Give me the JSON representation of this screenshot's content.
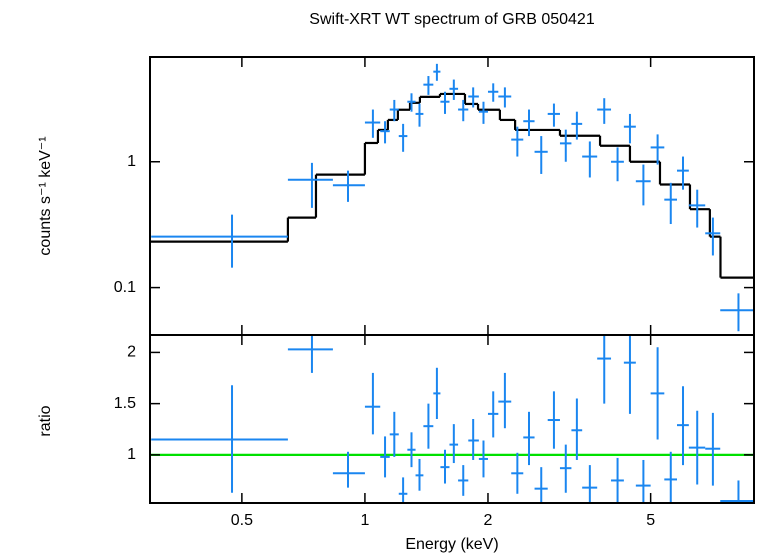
{
  "chart_data": [
    {
      "type": "errorbar",
      "title": "Swift-XRT WT spectrum of GRB 050421",
      "ylabel": "counts s⁻¹ keV⁻¹",
      "xscale": "log",
      "yscale": "log",
      "xlim": [
        0.298,
        8.95
      ],
      "ylim": [
        0.042,
        6.8
      ],
      "xticks": [
        0.5,
        1,
        2,
        5
      ],
      "yticks": [
        0.1,
        1
      ],
      "data": {
        "color": "#1a86f0",
        "x": [
          0.473,
          0.742,
          0.909,
          1.046,
          1.12,
          1.18,
          1.24,
          1.3,
          1.36,
          1.43,
          1.5,
          1.57,
          1.65,
          1.74,
          1.84,
          1.95,
          2.06,
          2.2,
          2.36,
          2.52,
          2.7,
          2.9,
          3.1,
          3.3,
          3.55,
          3.85,
          4.15,
          4.45,
          4.8,
          5.2,
          5.6,
          6.0,
          6.5,
          7.1,
          8.2
        ],
        "xlo": [
          0.3,
          0.648,
          0.835,
          1.0,
          1.09,
          1.15,
          1.21,
          1.27,
          1.33,
          1.39,
          1.47,
          1.53,
          1.61,
          1.69,
          1.79,
          1.9,
          2.0,
          2.12,
          2.28,
          2.44,
          2.6,
          2.8,
          3.0,
          3.2,
          3.4,
          3.7,
          4.0,
          4.3,
          4.6,
          5.0,
          5.4,
          5.8,
          6.2,
          6.8,
          7.4
        ],
        "xhi": [
          0.648,
          0.835,
          1.0,
          1.09,
          1.15,
          1.21,
          1.27,
          1.33,
          1.39,
          1.47,
          1.53,
          1.61,
          1.69,
          1.79,
          1.9,
          2.0,
          2.12,
          2.28,
          2.44,
          2.6,
          2.8,
          3.0,
          3.2,
          3.4,
          3.7,
          4.0,
          4.3,
          4.6,
          5.0,
          5.4,
          5.8,
          6.2,
          6.8,
          7.4,
          8.95
        ],
        "y": [
          0.254,
          0.72,
          0.65,
          2.05,
          1.75,
          2.6,
          1.6,
          3.0,
          2.4,
          4.1,
          5.2,
          3.0,
          3.8,
          2.6,
          3.3,
          2.5,
          3.6,
          3.3,
          1.5,
          2.1,
          1.2,
          2.4,
          1.4,
          2.0,
          1.1,
          2.6,
          1.0,
          1.9,
          0.7,
          1.3,
          0.5,
          0.85,
          0.45,
          0.27,
          0.066
        ],
        "ylo": [
          0.144,
          0.43,
          0.48,
          1.55,
          1.4,
          2.1,
          1.2,
          2.5,
          1.9,
          3.4,
          4.4,
          2.4,
          3.1,
          2.1,
          2.7,
          2.0,
          3.0,
          2.7,
          1.1,
          1.6,
          0.8,
          1.9,
          1.0,
          1.5,
          0.75,
          2.0,
          0.7,
          1.4,
          0.45,
          0.95,
          0.32,
          0.6,
          0.3,
          0.18,
          0.045
        ],
        "yhi": [
          0.38,
          0.98,
          0.85,
          2.6,
          2.1,
          3.1,
          2.0,
          3.5,
          2.9,
          4.8,
          6.0,
          3.6,
          4.5,
          3.1,
          3.9,
          3.0,
          4.2,
          3.9,
          1.9,
          2.6,
          1.6,
          2.9,
          1.8,
          2.5,
          1.45,
          3.2,
          1.3,
          2.4,
          0.95,
          1.65,
          0.68,
          1.1,
          0.6,
          0.36,
          0.09
        ]
      },
      "model": {
        "color": "#000000",
        "edges": [
          0.298,
          0.648,
          0.759,
          1.0,
          1.076,
          1.138,
          1.204,
          1.289,
          1.363,
          1.526,
          1.757,
          1.891,
          2.139,
          2.33,
          3.0,
          3.76,
          4.45,
          5.27,
          6.24,
          6.98,
          7.41,
          8.95
        ],
        "values": [
          0.232,
          0.36,
          0.79,
          1.41,
          1.79,
          2.15,
          2.59,
          2.94,
          3.28,
          3.46,
          2.88,
          2.59,
          2.15,
          1.79,
          1.61,
          1.34,
          1.0,
          0.66,
          0.42,
          0.254,
          0.12
        ]
      }
    },
    {
      "type": "errorbar",
      "ylabel": "ratio",
      "xlabel": "Energy (keV)",
      "xscale": "log",
      "yscale": "linear",
      "xlim": [
        0.298,
        8.95
      ],
      "ylim": [
        0.53,
        2.17
      ],
      "xticks": [
        0.5,
        1,
        2,
        5
      ],
      "yticks": [
        1,
        1.5,
        2
      ],
      "data": {
        "color": "#1a86f0",
        "x": [
          0.473,
          0.742,
          0.909,
          1.046,
          1.12,
          1.18,
          1.24,
          1.3,
          1.36,
          1.43,
          1.5,
          1.57,
          1.65,
          1.74,
          1.84,
          1.95,
          2.06,
          2.2,
          2.36,
          2.52,
          2.7,
          2.9,
          3.1,
          3.3,
          3.55,
          3.85,
          4.15,
          4.45,
          4.8,
          5.2,
          5.6,
          6.0,
          6.5,
          7.1,
          8.2
        ],
        "xlo": [
          0.3,
          0.648,
          0.835,
          1.0,
          1.09,
          1.15,
          1.21,
          1.27,
          1.33,
          1.39,
          1.47,
          1.53,
          1.61,
          1.69,
          1.79,
          1.9,
          2.0,
          2.12,
          2.28,
          2.44,
          2.6,
          2.8,
          3.0,
          3.2,
          3.4,
          3.7,
          4.0,
          4.3,
          4.6,
          5.0,
          5.4,
          5.8,
          6.2,
          6.8,
          7.4
        ],
        "xhi": [
          0.648,
          0.835,
          1.0,
          1.09,
          1.15,
          1.21,
          1.27,
          1.33,
          1.39,
          1.47,
          1.53,
          1.61,
          1.69,
          1.79,
          1.9,
          2.0,
          2.12,
          2.28,
          2.44,
          2.6,
          2.8,
          3.0,
          3.2,
          3.4,
          3.7,
          4.0,
          4.3,
          4.6,
          5.0,
          5.4,
          5.8,
          6.2,
          6.8,
          7.4,
          8.95
        ],
        "y": [
          1.15,
          2.03,
          0.82,
          1.47,
          0.98,
          1.2,
          0.62,
          1.05,
          0.8,
          1.28,
          1.6,
          0.88,
          1.1,
          0.75,
          1.14,
          0.96,
          1.4,
          1.52,
          0.82,
          1.17,
          0.67,
          1.34,
          0.87,
          1.24,
          0.68,
          1.94,
          0.75,
          1.9,
          0.7,
          1.6,
          0.76,
          1.29,
          1.07,
          1.06,
          0.55
        ],
        "ylo": [
          0.63,
          1.8,
          0.68,
          1.2,
          0.78,
          0.98,
          0.48,
          0.88,
          0.65,
          1.06,
          1.35,
          0.72,
          0.92,
          0.6,
          0.95,
          0.78,
          1.17,
          1.26,
          0.62,
          0.9,
          0.47,
          1.06,
          0.63,
          0.95,
          0.47,
          1.5,
          0.52,
          1.4,
          0.45,
          1.15,
          0.48,
          0.9,
          0.71,
          0.7,
          0.53
        ],
        "yhi": [
          1.68,
          2.17,
          1.03,
          1.8,
          1.18,
          1.42,
          0.78,
          1.22,
          0.96,
          1.5,
          1.85,
          1.05,
          1.3,
          0.9,
          1.35,
          1.14,
          1.62,
          1.8,
          1.02,
          1.42,
          0.88,
          1.62,
          1.1,
          1.55,
          0.9,
          2.17,
          0.97,
          2.17,
          0.95,
          2.05,
          1.03,
          1.67,
          1.43,
          1.41,
          0.75
        ]
      },
      "reference": {
        "color": "#00e000",
        "value": 1
      }
    }
  ]
}
